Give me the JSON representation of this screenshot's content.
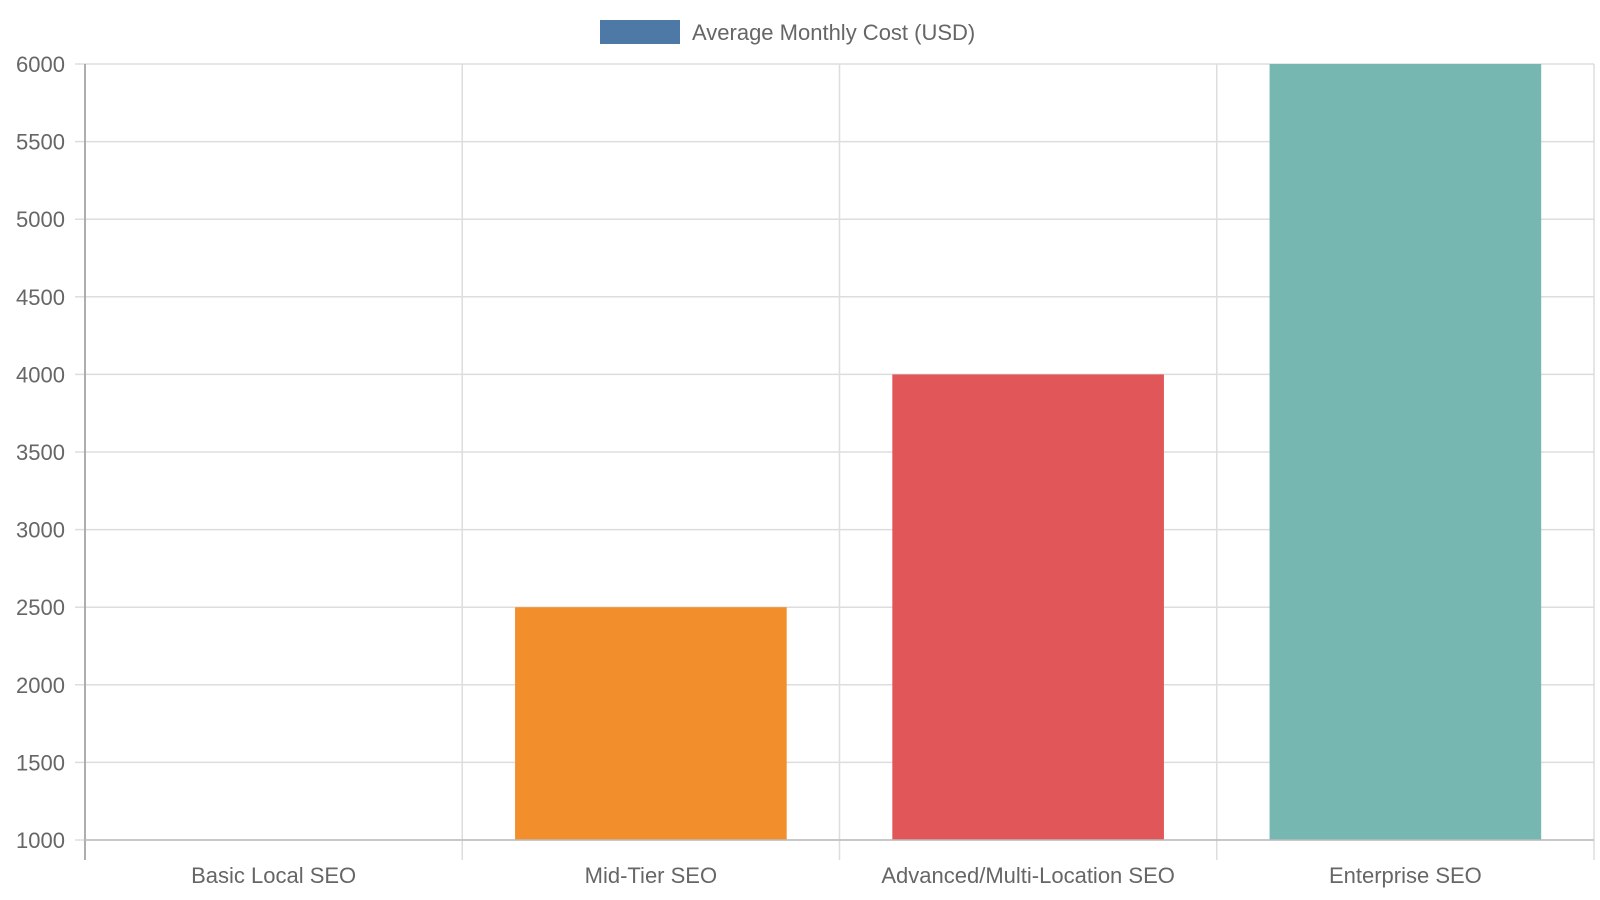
{
  "chart_data": {
    "type": "bar",
    "categories": [
      "Basic Local SEO",
      "Mid-Tier SEO",
      "Advanced/Multi-Location SEO",
      "Enterprise SEO"
    ],
    "series": [
      {
        "name": "Average Monthly Cost (USD)",
        "values": [
          1000,
          2500,
          4000,
          6000
        ]
      }
    ],
    "bar_colors": [
      "#4e79a7",
      "#f28e2b",
      "#e15759",
      "#76b7b2"
    ],
    "legend_color": "#4e79a7",
    "ylim": [
      1000,
      6000
    ],
    "yticks": [
      "1000",
      "1500",
      "2000",
      "2500",
      "3000",
      "3500",
      "4000",
      "4500",
      "5000",
      "5500",
      "6000"
    ],
    "grid": true,
    "legend_position": "top-center",
    "title": "",
    "xlabel": "",
    "ylabel": ""
  }
}
